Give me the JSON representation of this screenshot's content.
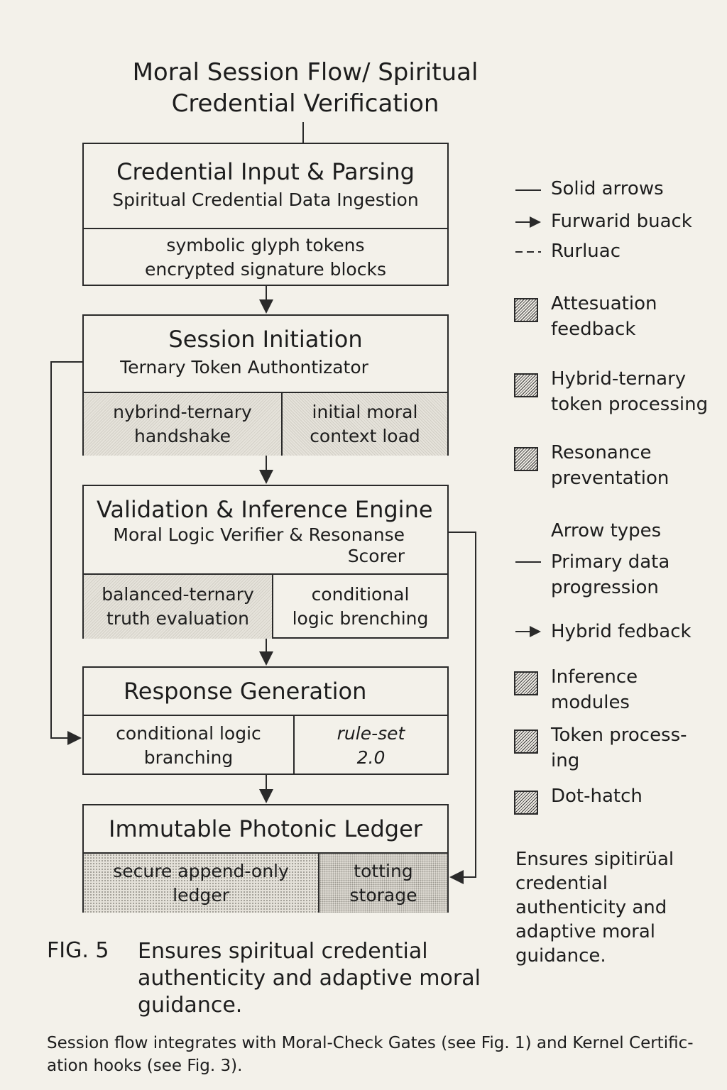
{
  "title": "Moral Session Flow/ Spiritual\nCredential Verification",
  "boxes": [
    {
      "title": "Credential Input & Parsing",
      "subtitle": "Spiritual Credential Data Ingestion",
      "cells": [
        {
          "text": "symbolic glyph tokens\nencrypted signature blocks",
          "pattern": "none"
        }
      ]
    },
    {
      "title": "Session Initiation",
      "subtitle": "Ternary Token Authontizator",
      "cells": [
        {
          "text": "nybrind-ternary\nhandshake",
          "pattern": "diagonal"
        },
        {
          "text": "initial moral\ncontext load",
          "pattern": "crosshatch"
        }
      ]
    },
    {
      "title": "Validation & Inference Engine",
      "subtitle": "Moral Logic Verifier & Resonanse\nScorer",
      "cells": [
        {
          "text": "balanced-ternary\ntruth evaluation",
          "pattern": "diagonal"
        },
        {
          "text": "conditional\nlogic brenching",
          "pattern": "none"
        }
      ]
    },
    {
      "title": "Response Generation",
      "cells": [
        {
          "text": "conditional logic\nbranching",
          "pattern": "none"
        },
        {
          "text": "rule-set\n2.0",
          "pattern": "none"
        }
      ]
    },
    {
      "title": "Immutable Photonic Ledger",
      "cells": [
        {
          "text": "secure append-only\nledger",
          "pattern": "dot-hatch"
        },
        {
          "text": "totting\nstorage",
          "pattern": "dense-dot"
        }
      ]
    }
  ],
  "legend": {
    "lines": [
      {
        "symbol": "solid",
        "label": "Solid arrows"
      },
      {
        "symbol": "arrow",
        "label": "Furwarid buack"
      },
      {
        "symbol": "dashed",
        "label": "Rurluac"
      }
    ],
    "patterns": [
      "Attesuation\nfeedback",
      "Hybrid-ternary\ntoken processing",
      "Resonance\npreventation"
    ],
    "arrow_types_heading": "Arrow types",
    "arrow_types": [
      {
        "symbol": "solid",
        "label": "Primary data\nprogression"
      },
      {
        "symbol": "arrow",
        "label": "Hybrid fedback"
      }
    ],
    "patterns2": [
      "Inference\nmodules",
      "Token process-\ning",
      "Dot-hatch"
    ]
  },
  "side_note": "Ensures sipitirüal\ncredential\nauthenticity and\nadaptive moral\nguidance.",
  "figure": {
    "label": "FIG. 5",
    "caption": "Ensures spiritual credential\nauthenticity and adaptive moral\nguidance."
  },
  "footer": "Session flow integrates with Moral-Check Gates (see Fig. 1) and Kernel Certific-\nation hooks (see Fig. 3)."
}
